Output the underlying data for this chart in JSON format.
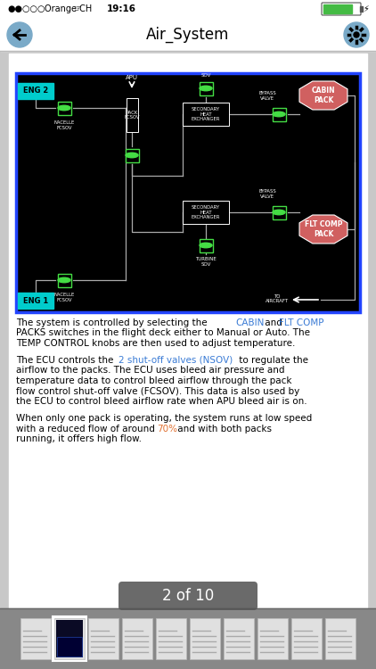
{
  "title": "Air_System",
  "page_indicator": "2 of 10",
  "highlight_color": "#3a7bd5",
  "highlight_color2": "#e07030",
  "diagram_border": "#2244ff",
  "eng_box_color": "#00cccc",
  "valve_fill": "#000000",
  "valve_stroke": "#44dd44",
  "valve_ellipse": "#44dd44",
  "pack_color": "#d06060",
  "white": "#ffffff",
  "black": "#000000",
  "gray_bg": "#aaaaaa",
  "nav_bg": "#ffffff",
  "content_bg": "#ffffff",
  "status_dots_active": "#000000",
  "status_dots_inactive": "#888888",
  "battery_color": "#44bb44",
  "thumb_bg": "#999999",
  "thumb_selected_border": "#ffffff",
  "pipe_color": "#aaaaaa",
  "nav_button_color": "#7aaac8",
  "para1_line1": "The system is controlled by selecting the ",
  "para1_cabin": "CABIN",
  "para1_and": " and ",
  "para1_fltcomp": "FLT COMP",
  "para1_rest": "\nPACKS switches in the flight deck either to Manual or Auto. The\nTEMP CONTROL knobs are then used to adjust temperature.",
  "para2_pre": "The ECU controls the ",
  "para2_highlight": "2 shut-off valves (NSOV)",
  "para2_rest": " to regulate the\nairflow to the packs. The ECU uses bleed air pressure and\ntemperature data to control bleed airflow through the pack\nflow control shut-off valve (FCSOV). This data is also used by\nthe ECU to control bleed airflow rate when APU bleed air is on.",
  "para3_pre": "When only one pack is operating, the system runs at low speed\nwith a reduced flow of around ",
  "para3_highlight": "70%",
  "para3_rest": " and with both packs\nrunning, it offers high flow.",
  "num_thumbnails": 10
}
